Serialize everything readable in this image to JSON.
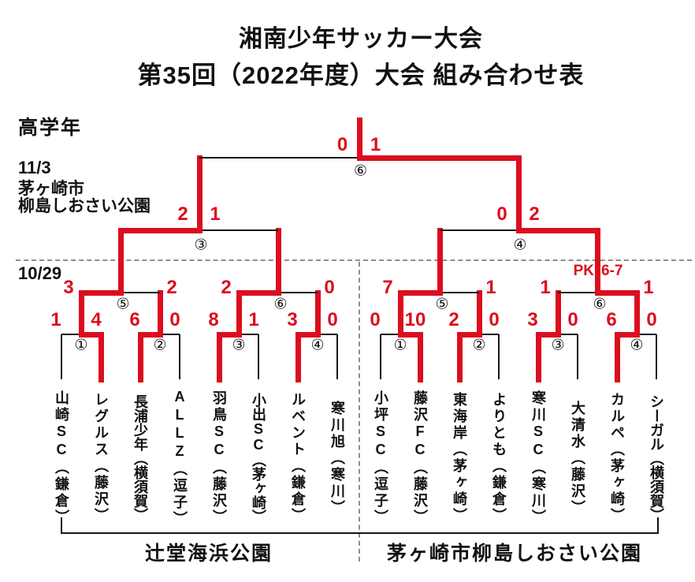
{
  "title": {
    "line1": "湘南少年サッカー大会",
    "line2": "第35回（2022年度）大会 組み合わせ表"
  },
  "labels": {
    "category": "高学年",
    "final_date": "11/3",
    "final_venue_line1": "茅ヶ崎市",
    "final_venue_line2": "柳島しおさい公園",
    "first_round_date": "10/29",
    "pk_note": "PK6-7"
  },
  "venues": {
    "left": "辻堂海浜公園",
    "right": "茅ヶ崎市柳島しおさい公園"
  },
  "colors": {
    "accent_red": "#dc0d1e",
    "line_black": "#161616",
    "dash_gray": "#8f8f8f"
  },
  "teams": [
    {
      "name": "山崎SC",
      "city": "鎌倉"
    },
    {
      "name": "レグルス",
      "city": "藤沢"
    },
    {
      "name": "長浦少年",
      "city": "横須賀"
    },
    {
      "name": "ALLZ",
      "city": "逗子"
    },
    {
      "name": "羽鳥SC",
      "city": "藤沢"
    },
    {
      "name": "小出SC",
      "city": "茅ヶ崎"
    },
    {
      "name": "ルベント",
      "city": "鎌倉"
    },
    {
      "name": "寒川旭",
      "city": "寒川"
    },
    {
      "name": "小坪SC",
      "city": "逗子"
    },
    {
      "name": "藤沢FC",
      "city": "藤沢"
    },
    {
      "name": "東海岸",
      "city": "茅ヶ崎"
    },
    {
      "name": "よりとも",
      "city": "鎌倉"
    },
    {
      "name": "寒川SC",
      "city": "寒川"
    },
    {
      "name": "大清水",
      "city": "藤沢"
    },
    {
      "name": "カルペ",
      "city": "茅ヶ崎"
    },
    {
      "name": "シーガル",
      "city": "横須賀"
    }
  ],
  "rounds": {
    "round1": [
      {
        "number": "①",
        "score_a": "1",
        "score_b": "4",
        "winner": "b"
      },
      {
        "number": "②",
        "score_a": "6",
        "score_b": "0",
        "winner": "a"
      },
      {
        "number": "③",
        "score_a": "8",
        "score_b": "1",
        "winner": "a"
      },
      {
        "number": "④",
        "score_a": "3",
        "score_b": "0",
        "winner": "a"
      },
      {
        "number": "①",
        "score_a": "0",
        "score_b": "10",
        "winner": "b"
      },
      {
        "number": "②",
        "score_a": "2",
        "score_b": "0",
        "winner": "a"
      },
      {
        "number": "③",
        "score_a": "3",
        "score_b": "0",
        "winner": "a"
      },
      {
        "number": "④",
        "score_a": "6",
        "score_b": "0",
        "winner": "a"
      }
    ],
    "quarterfinals": [
      {
        "number": "⑤",
        "score_a": "3",
        "score_b": "2",
        "winner": "a"
      },
      {
        "number": "⑥",
        "score_a": "2",
        "score_b": "0",
        "winner": "a"
      },
      {
        "number": "⑤",
        "score_a": "7",
        "score_b": "1",
        "winner": "a"
      },
      {
        "number": "⑥",
        "score_a": "1",
        "score_b": "1",
        "winner": "b",
        "note": "PK6-7"
      }
    ],
    "semifinals": [
      {
        "number": "③",
        "score_a": "2",
        "score_b": "1",
        "winner": "a"
      },
      {
        "number": "④",
        "score_a": "0",
        "score_b": "2",
        "winner": "b"
      }
    ],
    "final": {
      "number": "⑥",
      "score_a": "0",
      "score_b": "1",
      "winner": "b"
    }
  }
}
